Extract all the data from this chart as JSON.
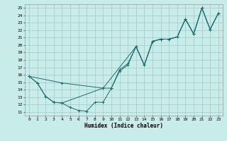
{
  "title": "",
  "xlabel": "Humidex (Indice chaleur)",
  "bg_color": "#c8ecea",
  "grid_color": "#9bbfbe",
  "line_color": "#1a6b6b",
  "xlim": [
    -0.5,
    23.5
  ],
  "ylim": [
    10.5,
    25.5
  ],
  "xticks": [
    0,
    1,
    2,
    3,
    4,
    5,
    6,
    7,
    8,
    9,
    10,
    11,
    12,
    13,
    14,
    15,
    16,
    17,
    18,
    19,
    20,
    21,
    22,
    23
  ],
  "yticks": [
    11,
    12,
    13,
    14,
    15,
    16,
    17,
    18,
    19,
    20,
    21,
    22,
    23,
    24,
    25
  ],
  "line1_x": [
    0,
    1,
    2,
    3,
    4,
    5,
    6,
    7,
    8,
    9,
    10,
    11,
    12,
    13,
    14,
    15,
    16,
    17,
    18,
    19,
    20,
    21,
    22,
    23
  ],
  "line1_y": [
    15.8,
    14.9,
    13.1,
    12.3,
    12.2,
    11.6,
    11.2,
    11.1,
    12.3,
    12.3,
    14.2,
    16.5,
    17.3,
    19.8,
    17.3,
    20.5,
    20.8,
    20.8,
    21.1,
    23.5,
    21.5,
    25.0,
    22.1,
    24.3
  ],
  "line2_x": [
    0,
    1,
    2,
    3,
    4,
    9,
    10,
    11,
    12,
    13,
    14,
    15,
    16,
    17,
    18,
    19,
    20,
    21,
    22,
    23
  ],
  "line2_y": [
    15.8,
    14.9,
    13.1,
    12.3,
    12.2,
    14.2,
    14.2,
    16.7,
    17.5,
    19.8,
    17.3,
    20.5,
    20.8,
    20.8,
    21.1,
    23.5,
    21.5,
    25.0,
    22.1,
    24.3
  ],
  "line3_x": [
    0,
    4,
    9,
    13,
    14,
    15,
    16,
    17,
    18,
    19,
    20,
    21,
    22,
    23
  ],
  "line3_y": [
    15.8,
    14.9,
    14.2,
    19.8,
    17.3,
    20.5,
    20.8,
    20.8,
    21.1,
    23.5,
    21.5,
    25.0,
    22.1,
    24.3
  ],
  "xlabel_fontsize": 5.5,
  "tick_fontsize": 4.5,
  "linewidth": 0.7,
  "markersize": 2.5,
  "markeredgewidth": 0.7
}
